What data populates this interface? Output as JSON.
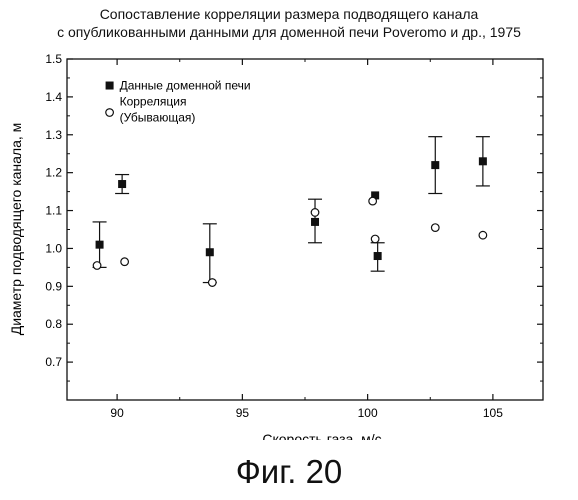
{
  "chart_data": {
    "type": "scatter",
    "title": "Сопоставление корреляции размера подводящего канала",
    "subtitle": "с опубликованными данными для доменной печи Poveromo и др., 1975",
    "xlabel": "Скорость газа, м/с",
    "ylabel": "Диаметр подводящего канала, м",
    "xlim": [
      88,
      107
    ],
    "ylim": [
      0.6,
      1.5
    ],
    "xticks": [
      90,
      95,
      100,
      105
    ],
    "yticks": [
      0.7,
      0.8,
      0.9,
      1.0,
      1.1,
      1.2,
      1.3,
      1.4,
      1.5
    ],
    "xtick_labels": [
      "90",
      "95",
      "100",
      "105"
    ],
    "ytick_labels": [
      "0.7",
      "0.8",
      "0.9",
      "1.0",
      "1.1",
      "1.2",
      "1.3",
      "1.4",
      "1.5"
    ],
    "legend_position": "top-left",
    "grid": false,
    "series": [
      {
        "name": "Данные доменной печи",
        "marker": "filled-square",
        "points": [
          {
            "x": 89.3,
            "y": 1.01,
            "ylow": 0.95,
            "yhigh": 1.07
          },
          {
            "x": 90.2,
            "y": 1.17,
            "ylow": 1.145,
            "yhigh": 1.195
          },
          {
            "x": 93.7,
            "y": 0.99,
            "ylow": 0.91,
            "yhigh": 1.065
          },
          {
            "x": 97.9,
            "y": 1.07,
            "ylow": 1.015,
            "yhigh": 1.13
          },
          {
            "x": 100.3,
            "y": 1.14,
            "ylow": null,
            "yhigh": null
          },
          {
            "x": 100.4,
            "y": 0.98,
            "ylow": 0.94,
            "yhigh": 1.015
          },
          {
            "x": 102.7,
            "y": 1.22,
            "ylow": 1.145,
            "yhigh": 1.295
          },
          {
            "x": 104.6,
            "y": 1.23,
            "ylow": 1.165,
            "yhigh": 1.295
          }
        ]
      },
      {
        "name": "Корреляция (Убывающая)",
        "marker": "open-circle",
        "points": [
          {
            "x": 89.2,
            "y": 0.955
          },
          {
            "x": 90.3,
            "y": 0.965
          },
          {
            "x": 93.8,
            "y": 0.91
          },
          {
            "x": 97.9,
            "y": 1.095
          },
          {
            "x": 100.2,
            "y": 1.125
          },
          {
            "x": 100.3,
            "y": 1.025
          },
          {
            "x": 102.7,
            "y": 1.055
          },
          {
            "x": 104.6,
            "y": 1.035
          }
        ]
      }
    ],
    "legend": {
      "entries": [
        {
          "label": "Данные доменной печи",
          "marker": "filled-square"
        },
        {
          "label": "Корреляция",
          "marker": "open-circle"
        },
        {
          "label": "(Убывающая)",
          "marker": ""
        }
      ]
    }
  },
  "figure_label": "Фиг. 20"
}
